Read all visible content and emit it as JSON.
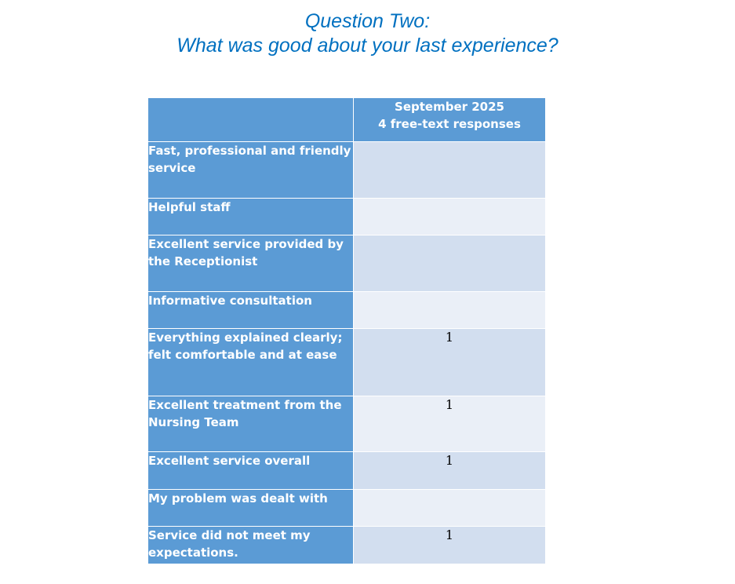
{
  "title": {
    "line1": "Question Two:",
    "line2": "What was good about your last experience?"
  },
  "table": {
    "header": {
      "label": "",
      "period": "September 2025",
      "responses": "4 free-text responses"
    },
    "rows": [
      {
        "label": "Fast, professional and friendly service",
        "value": ""
      },
      {
        "label": "Helpful staff",
        "value": ""
      },
      {
        "label": "Excellent service provided by the Receptionist",
        "value": ""
      },
      {
        "label": "Informative consultation",
        "value": ""
      },
      {
        "label": "Everything explained clearly; felt comfortable and at ease",
        "value": "1"
      },
      {
        "label": "Excellent treatment from the Nursing Team",
        "value": "1"
      },
      {
        "label": "Excellent service overall",
        "value": "1"
      },
      {
        "label": "My problem was dealt with",
        "value": ""
      },
      {
        "label": "Service did not meet my expectations.",
        "value": "1"
      }
    ]
  },
  "colors": {
    "title": "#0070c0",
    "header_fill": "#5b9bd5",
    "row_odd": "#d2deef",
    "row_even": "#eaeff7"
  }
}
